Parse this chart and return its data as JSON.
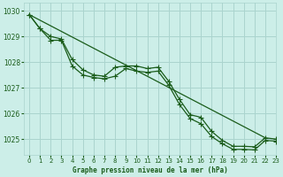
{
  "title": "Graphe pression niveau de la mer (hPa)",
  "bg_color": "#cceee8",
  "grid_color": "#aad4ce",
  "line_color": "#1a5c1a",
  "xlim": [
    -0.5,
    23
  ],
  "ylim": [
    1024.4,
    1030.3
  ],
  "yticks": [
    1025,
    1026,
    1027,
    1028,
    1029,
    1030
  ],
  "xticks": [
    0,
    1,
    2,
    3,
    4,
    5,
    6,
    7,
    8,
    9,
    10,
    11,
    12,
    13,
    14,
    15,
    16,
    17,
    18,
    19,
    20,
    21,
    22,
    23
  ],
  "series_upper": [
    1029.85,
    1029.3,
    1029.0,
    1028.9,
    1028.1,
    1027.7,
    1027.5,
    1027.45,
    1027.8,
    1027.85,
    1027.85,
    1027.75,
    1027.8,
    1027.25,
    1026.55,
    1025.95,
    1025.85,
    1025.3,
    1024.95,
    1024.72,
    1024.72,
    1024.7,
    1025.05,
    1025.0
  ],
  "series_lower": [
    1029.85,
    1029.3,
    1028.85,
    1028.85,
    1027.85,
    1027.5,
    1027.4,
    1027.35,
    1027.45,
    1027.75,
    1027.65,
    1027.6,
    1027.65,
    1027.1,
    1026.35,
    1025.8,
    1025.6,
    1025.1,
    1024.82,
    1024.6,
    1024.6,
    1024.58,
    1024.95,
    1024.92
  ]
}
